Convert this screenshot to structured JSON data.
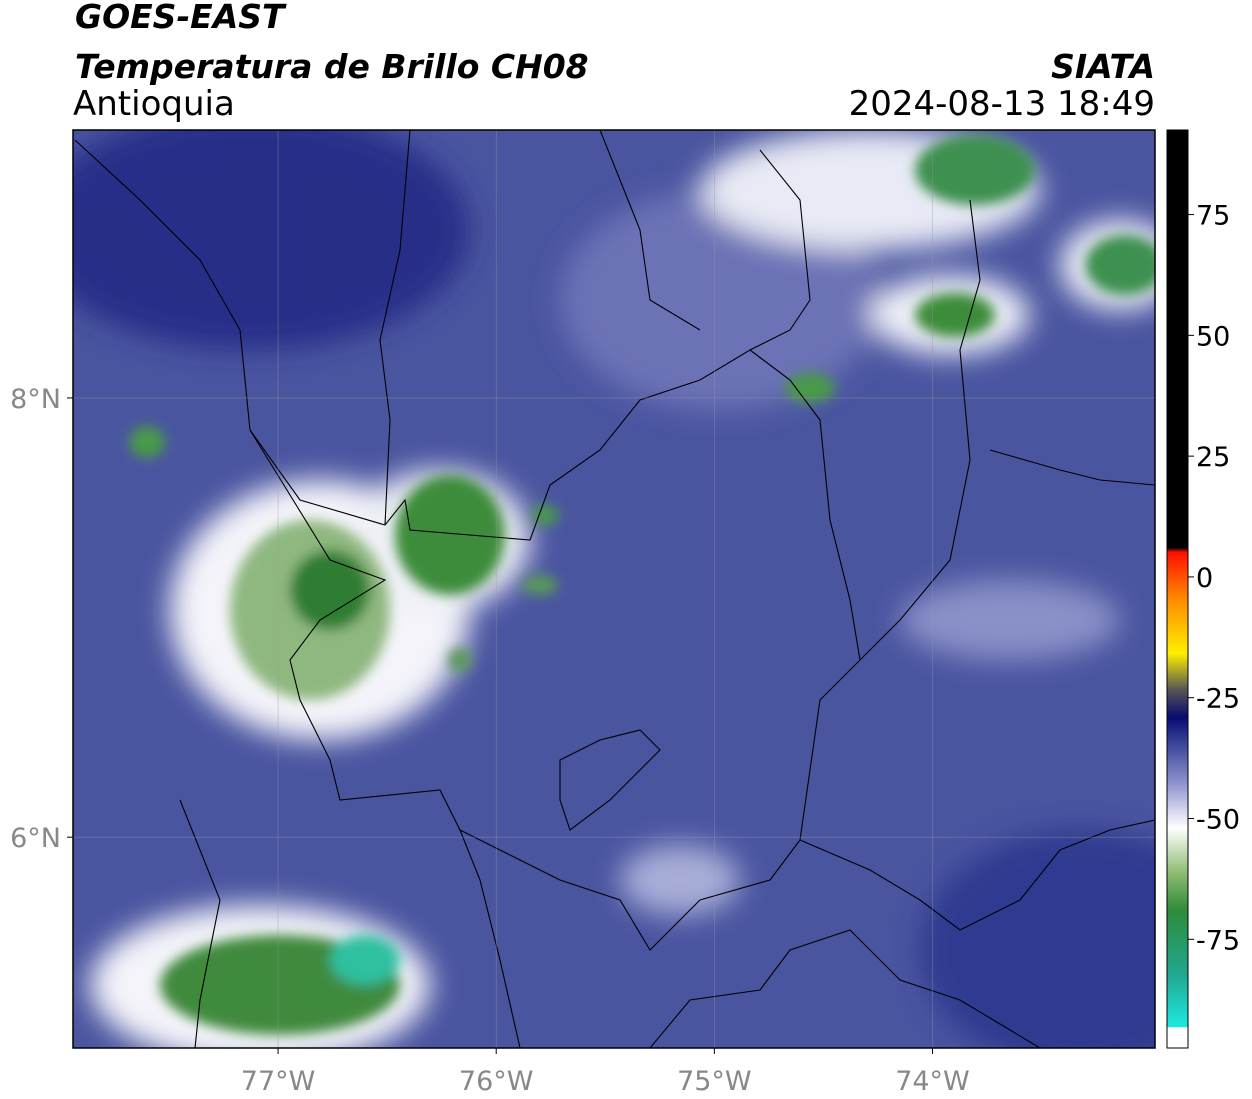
{
  "header": {
    "satellite": "GOES-EAST",
    "product": "Temperatura de Brillo CH08",
    "region": "Antioquia",
    "source": "SIATA",
    "datetime": "2024-08-13 18:49"
  },
  "map": {
    "xlim": [
      -77.94,
      -72.98
    ],
    "ylim": [
      5.04,
      9.22
    ],
    "xticks": [
      {
        "value": -77,
        "label": "77°W"
      },
      {
        "value": -76,
        "label": "76°W"
      },
      {
        "value": -75,
        "label": "75°W"
      },
      {
        "value": -74,
        "label": "74°W"
      }
    ],
    "yticks": [
      {
        "value": 8,
        "label": "8°N"
      },
      {
        "value": 6,
        "label": "6°N"
      }
    ]
  },
  "colorbar": {
    "lim": [
      -97.5,
      92.5
    ],
    "ticks": [
      75,
      50,
      25,
      0,
      -25,
      -50,
      -75
    ]
  }
}
